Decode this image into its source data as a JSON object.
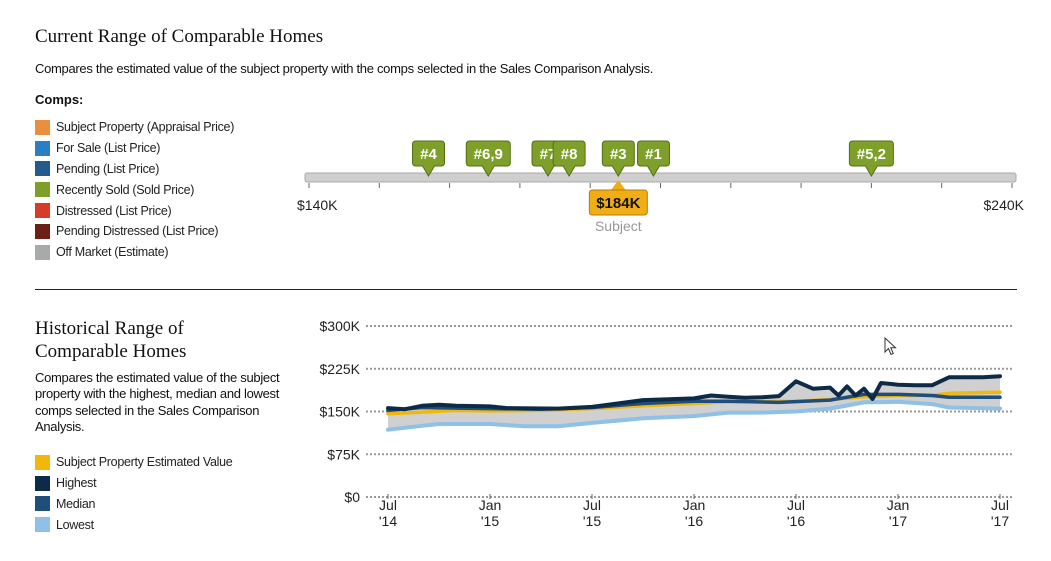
{
  "top": {
    "title": "Current Range of Comparable Homes",
    "subtitle": "Compares the estimated value of the subject property with the comps selected in the Sales Comparison Analysis.",
    "comps_heading": "Comps:",
    "legend": [
      {
        "label": "Subject Property (Appraisal Price)",
        "color": "#ec8e3f"
      },
      {
        "label": "For Sale (List Price)",
        "color": "#2a7fc2"
      },
      {
        "label": "Pending (List Price)",
        "color": "#235c8c"
      },
      {
        "label": "Recently Sold (Sold Price)",
        "color": "#7ea02a"
      },
      {
        "label": "Distressed (List Price)",
        "color": "#d63c27"
      },
      {
        "label": "Pending Distressed (List Price)",
        "color": "#6b1f16"
      },
      {
        "label": "Off Market (Estimate)",
        "color": "#a9a9a9"
      }
    ]
  },
  "range_chart": {
    "min_label": "$140K",
    "max_label": "$240K",
    "min_value": 140000,
    "max_value": 240000,
    "comps": [
      {
        "label": "#4",
        "value": 157000,
        "color": "#7ea02a"
      },
      {
        "label": "#6,9",
        "value": 165500,
        "color": "#7ea02a"
      },
      {
        "label": "#7",
        "value": 174000,
        "color": "#7ea02a"
      },
      {
        "label": "#8",
        "value": 177000,
        "color": "#7ea02a"
      },
      {
        "label": "#3",
        "value": 184000,
        "color": "#7ea02a"
      },
      {
        "label": "#1",
        "value": 189000,
        "color": "#7ea02a"
      },
      {
        "label": "#5,2",
        "value": 220000,
        "color": "#7ea02a"
      }
    ],
    "subject": {
      "value_label": "$184K",
      "caption": "Subject",
      "value": 184000,
      "color": "#f1ad16"
    }
  },
  "bottom": {
    "title": "Historical Range of Comparable Homes",
    "subtitle": "Compares the estimated value of the subject property with the highest, median and lowest comps selected in the Sales Comparison Analysis.",
    "legend": [
      {
        "label": "Subject Property Estimated Value",
        "color": "#f1b80b"
      },
      {
        "label": "Highest",
        "color": "#0d2b47"
      },
      {
        "label": "Median",
        "color": "#1e4e79"
      },
      {
        "label": "Lowest",
        "color": "#8ec0e8"
      }
    ]
  },
  "chart_data": {
    "type": "line",
    "title": "Historical Range of Comparable Homes",
    "ylim": [
      0,
      300000
    ],
    "y_ticks": [
      "$0",
      "$75K",
      "$150K",
      "$225K",
      "$300K"
    ],
    "y_tick_values": [
      0,
      75000,
      150000,
      225000,
      300000
    ],
    "x_range": [
      0,
      36
    ],
    "x_ticks": [
      {
        "line1": "Jul",
        "line2": "'14",
        "month": 0
      },
      {
        "line1": "Jan",
        "line2": "'15",
        "month": 6
      },
      {
        "line1": "Jul",
        "line2": "'15",
        "month": 12
      },
      {
        "line1": "Jan",
        "line2": "'16",
        "month": 18
      },
      {
        "line1": "Jul",
        "line2": "'16",
        "month": 24
      },
      {
        "line1": "Jan",
        "line2": "'17",
        "month": 30
      },
      {
        "line1": "Jul",
        "line2": "'17",
        "month": 36
      }
    ],
    "grid": true,
    "series": [
      {
        "name": "Highest",
        "color": "#0d2b47",
        "points": [
          [
            0,
            156000
          ],
          [
            1,
            154000
          ],
          [
            2,
            160000
          ],
          [
            3,
            162000
          ],
          [
            4,
            160000
          ],
          [
            6,
            159000
          ],
          [
            7,
            156000
          ],
          [
            10,
            155000
          ],
          [
            12,
            158000
          ],
          [
            14,
            166000
          ],
          [
            15,
            170000
          ],
          [
            18,
            173000
          ],
          [
            19,
            178000
          ],
          [
            20,
            176000
          ],
          [
            21,
            174000
          ],
          [
            22,
            175000
          ],
          [
            23,
            177000
          ],
          [
            24,
            203000
          ],
          [
            25,
            190000
          ],
          [
            26,
            192000
          ],
          [
            26.5,
            178000
          ],
          [
            27,
            194000
          ],
          [
            27.5,
            178000
          ],
          [
            28,
            190000
          ],
          [
            28.5,
            172000
          ],
          [
            29,
            200000
          ],
          [
            30,
            197000
          ],
          [
            31,
            196000
          ],
          [
            32,
            196000
          ],
          [
            33,
            210000
          ],
          [
            35,
            210000
          ],
          [
            36,
            212000
          ]
        ]
      },
      {
        "name": "Median",
        "color": "#1e4e79",
        "points": [
          [
            0,
            152000
          ],
          [
            2,
            157000
          ],
          [
            4,
            156000
          ],
          [
            6,
            155000
          ],
          [
            9,
            154000
          ],
          [
            12,
            157000
          ],
          [
            15,
            164000
          ],
          [
            18,
            168000
          ],
          [
            20,
            168000
          ],
          [
            23,
            166000
          ],
          [
            26,
            170000
          ],
          [
            28,
            180000
          ],
          [
            30,
            180000
          ],
          [
            32,
            178000
          ],
          [
            33,
            175000
          ],
          [
            36,
            175000
          ]
        ]
      },
      {
        "name": "Subject Property Estimated Value",
        "color": "#f1b80b",
        "points": [
          [
            0,
            146000
          ],
          [
            2,
            149000
          ],
          [
            4,
            152000
          ],
          [
            6,
            151000
          ],
          [
            9,
            152000
          ],
          [
            12,
            155000
          ],
          [
            15,
            160000
          ],
          [
            18,
            164000
          ],
          [
            20,
            167000
          ],
          [
            24,
            168000
          ],
          [
            26,
            171000
          ],
          [
            28,
            176000
          ],
          [
            30,
            178000
          ],
          [
            32,
            178000
          ],
          [
            33,
            182000
          ],
          [
            36,
            184000
          ]
        ]
      },
      {
        "name": "Lowest",
        "color": "#8ec0e8",
        "points": [
          [
            0,
            118000
          ],
          [
            2,
            125000
          ],
          [
            3,
            128000
          ],
          [
            6,
            128000
          ],
          [
            8,
            124000
          ],
          [
            10,
            124000
          ],
          [
            12,
            130000
          ],
          [
            15,
            138000
          ],
          [
            18,
            142000
          ],
          [
            20,
            148000
          ],
          [
            22,
            148000
          ],
          [
            24,
            150000
          ],
          [
            26,
            155000
          ],
          [
            28,
            166000
          ],
          [
            30,
            167000
          ],
          [
            32,
            163000
          ],
          [
            33,
            157000
          ],
          [
            36,
            155000
          ]
        ]
      }
    ]
  }
}
